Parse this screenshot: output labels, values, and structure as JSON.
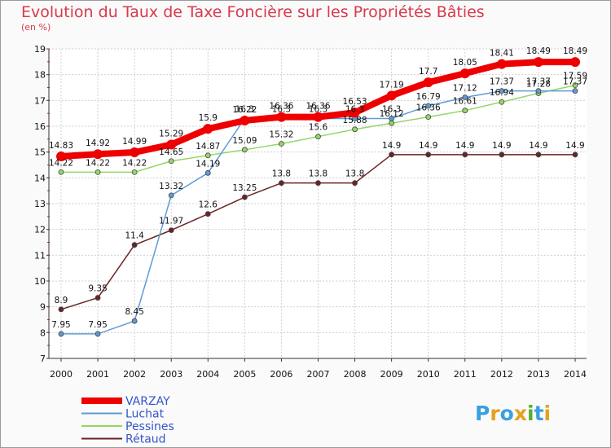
{
  "chart_data": {
    "type": "line",
    "title": "Evolution du Taux de Taxe Foncière sur les Propriétés Bâties",
    "ylabel": "(en %)",
    "xlabel": "",
    "x": [
      "2000",
      "2001",
      "2002",
      "2003",
      "2004",
      "2005",
      "2006",
      "2007",
      "2008",
      "2009",
      "2010",
      "2011",
      "2012",
      "2013",
      "2014"
    ],
    "ylim": [
      7,
      19
    ],
    "yticks": [
      7,
      8,
      9,
      10,
      11,
      12,
      13,
      14,
      15,
      16,
      17,
      18,
      19
    ],
    "grid": true,
    "legend_position": "bottom-left",
    "series": [
      {
        "name": "VARZAY",
        "color": "#ee0000",
        "values": [
          14.83,
          14.92,
          14.99,
          15.29,
          15.9,
          16.22,
          16.36,
          16.36,
          16.53,
          17.19,
          17.7,
          18.05,
          18.41,
          18.49,
          18.49
        ],
        "labels": [
          "14.83",
          "14.92",
          "14.99",
          "15.29",
          "15.9",
          "16.22",
          "16.36",
          "16.36",
          "16.53",
          "17.19",
          "17.7",
          "18.05",
          "18.41",
          "18.49",
          "18.49"
        ]
      },
      {
        "name": "Luchat",
        "color": "#5f9bd5",
        "values": [
          7.95,
          7.95,
          8.45,
          13.32,
          14.19,
          16.3,
          16.3,
          16.3,
          16.3,
          16.3,
          16.79,
          17.12,
          17.37,
          17.37,
          17.37
        ],
        "labels": [
          "7.95",
          "7.95",
          "8.45",
          "13.32",
          "14.19",
          "16.3",
          "16.3",
          "16.3",
          "16.3",
          "16.3",
          "16.79",
          "17.12",
          "17.37",
          "17.37",
          "17.37"
        ]
      },
      {
        "name": "Pessines",
        "color": "#93d765",
        "values": [
          14.22,
          14.22,
          14.22,
          14.65,
          14.87,
          15.09,
          15.32,
          15.6,
          15.88,
          16.12,
          16.36,
          16.61,
          16.94,
          17.28,
          17.59
        ],
        "labels": [
          "14.22",
          "14.22",
          "14.22",
          "14.65",
          "14.87",
          "15.09",
          "15.32",
          "15.6",
          "15.88",
          "16.12",
          "16.36",
          "16.61",
          "16.94",
          "17.28",
          "17.59"
        ]
      },
      {
        "name": "Rétaud",
        "color": "#6b2323",
        "values": [
          8.9,
          9.35,
          11.4,
          11.97,
          12.6,
          13.25,
          13.8,
          13.8,
          13.8,
          14.9,
          14.9,
          14.9,
          14.9,
          14.9,
          14.9
        ],
        "labels": [
          "8.9",
          "9.35",
          "11.4",
          "11.97",
          "12.6",
          "13.25",
          "13.8",
          "13.8",
          "13.8",
          "14.9",
          "14.9",
          "14.9",
          "14.9",
          "14.9",
          "14.9"
        ]
      }
    ]
  },
  "logo": {
    "letters": [
      "P",
      "r",
      "o",
      "x",
      "i",
      "t",
      "i"
    ],
    "colors": [
      "#3aa0e0",
      "#e6a020",
      "#3aa0e0",
      "#e6a020",
      "#55b030",
      "#3aa0e0",
      "#e6a020"
    ]
  }
}
